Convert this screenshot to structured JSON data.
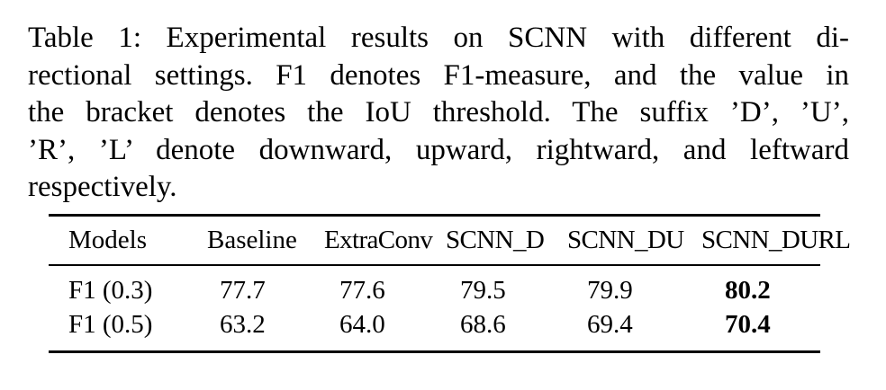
{
  "caption": {
    "lines": [
      "Table 1: Experimental results on SCNN with different di-",
      "rectional settings. F1 denotes F1-measure, and the value in",
      "the bracket denotes the IoU threshold. The suffix ’D’, ’U’,",
      "’R’, ’L’ denote downward, upward, rightward, and leftward",
      "respectively."
    ]
  },
  "table": {
    "headers": [
      "Models",
      "Baseline",
      "ExtraConv",
      "SCNN_D",
      "SCNN_DU",
      "SCNN_DURL"
    ],
    "rows": [
      {
        "label": "F1 (0.3)",
        "values": [
          "77.7",
          "77.6",
          "79.5",
          "79.9",
          "80.2"
        ]
      },
      {
        "label": "F1 (0.5)",
        "values": [
          "63.2",
          "64.0",
          "68.6",
          "69.4",
          "70.4"
        ]
      }
    ]
  }
}
